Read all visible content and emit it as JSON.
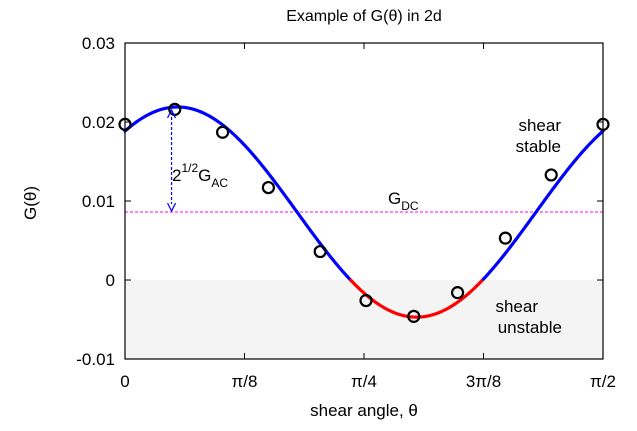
{
  "chart_data": {
    "type": "line",
    "title": "Example of G(θ) in 2d",
    "xlabel": "shear angle, θ",
    "ylabel": "G(θ)",
    "xlim": [
      0,
      1.5708
    ],
    "ylim": [
      -0.01,
      0.03
    ],
    "x_ticks": [
      {
        "value": 0,
        "label": "0"
      },
      {
        "value": 0.3927,
        "label": "π/8"
      },
      {
        "value": 0.7854,
        "label": "π/4"
      },
      {
        "value": 1.1781,
        "label": "3π/8"
      },
      {
        "value": 1.5708,
        "label": "π/2"
      }
    ],
    "y_ticks": [
      {
        "value": -0.01,
        "label": "-0.01"
      },
      {
        "value": 0,
        "label": "0"
      },
      {
        "value": 0.01,
        "label": "0.01"
      },
      {
        "value": 0.02,
        "label": "0.02"
      },
      {
        "value": 0.03,
        "label": "0.03"
      }
    ],
    "curve": {
      "g_dc": 0.0086,
      "g_ac_amplitude": 0.0133,
      "phase_x": 0.1727,
      "period_x": 1.5708
    },
    "markers": {
      "x": [
        0.0,
        0.1636,
        0.3207,
        0.4712,
        0.6414,
        0.792,
        0.949,
        1.0929,
        1.25,
        1.4006,
        1.5708
      ],
      "y": [
        0.0197,
        0.0216,
        0.0187,
        0.0117,
        0.0036,
        -0.0026,
        -0.0046,
        -0.0016,
        0.0053,
        0.0133,
        0.0197
      ]
    },
    "g_dc_line_y": 0.0086,
    "stability_threshold_y": 0,
    "colors": {
      "stable": "#0000ff",
      "unstable": "#ff0000",
      "dc_line": "#ff00ff",
      "unstable_region": "#f4f4f4",
      "marker": "#000000",
      "arrow": "#0000ff"
    },
    "annotations": {
      "shear_stable_line1": "shear",
      "shear_stable_line2": "stable",
      "shear_unstable_line1": "shear",
      "shear_unstable_line2": "unstable",
      "g_dc_main": "G",
      "g_dc_sub": "DC",
      "gac_base": "2",
      "gac_exp": "1/2",
      "gac_main": "G",
      "gac_sub": "AC"
    }
  }
}
